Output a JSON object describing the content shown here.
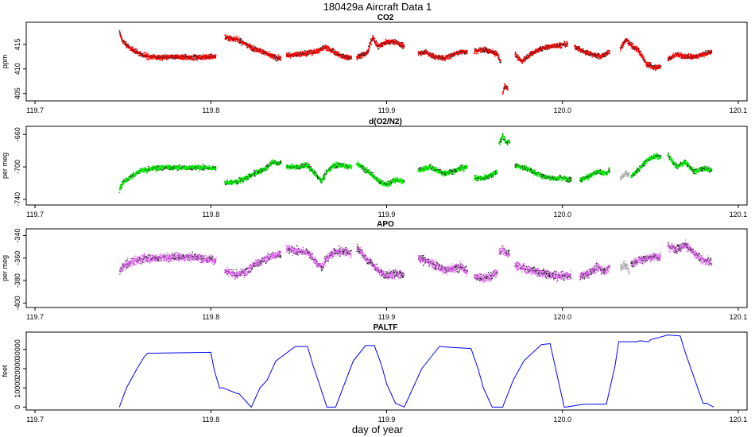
{
  "title": "180429a   Aircraft Data 1",
  "xlabel": "day of year",
  "colors": {
    "co2": "#ff0000",
    "o2n2": "#00ee00",
    "o2n2_flag": "#b0b0b0",
    "apo": "#dd66ee",
    "apo_flag": "#b0b0b0",
    "paltf": "#0000ff"
  },
  "chart_data": [
    {
      "type": "scatter",
      "title": "CO2",
      "ylabel": "ppm",
      "xlim": [
        119.695,
        120.105
      ],
      "ylim": [
        403.5,
        419.5
      ],
      "xticks": [
        "119.7",
        "119.8",
        "119.9",
        "120.0",
        "120.1"
      ],
      "yticks": [
        "405",
        "410",
        "415"
      ],
      "noise": 0.5,
      "segments": [
        {
          "x": [
            119.748,
            119.75,
            119.755,
            119.76,
            119.765,
            119.772,
            119.78,
            119.79,
            119.8,
            119.803
          ],
          "y": [
            417.5,
            415.5,
            414,
            413,
            412.5,
            412.3,
            412.5,
            412.3,
            412.5,
            412.6
          ]
        },
        {
          "x": [
            119.808,
            119.815,
            119.82,
            119.825,
            119.83,
            119.835,
            119.84
          ],
          "y": [
            416.5,
            416,
            415,
            414,
            413.5,
            412.5,
            412
          ]
        },
        {
          "x": [
            119.843,
            119.85,
            119.86,
            119.865,
            119.87,
            119.875,
            119.88
          ],
          "y": [
            412.8,
            413,
            413.5,
            414.5,
            413.5,
            412.5,
            412.3
          ]
        },
        {
          "x": [
            119.883,
            119.886,
            119.889,
            119.892,
            119.895,
            119.9,
            119.905,
            119.91
          ],
          "y": [
            412.3,
            412.8,
            413.2,
            416.5,
            414.5,
            415.5,
            415.5,
            414.5
          ]
        },
        {
          "x": [
            119.918,
            119.922,
            119.927,
            119.933,
            119.938,
            119.942,
            119.946
          ],
          "y": [
            413.2,
            413.5,
            412.5,
            412.2,
            413,
            413.5,
            413.5
          ]
        },
        {
          "x": [
            119.95,
            119.955,
            119.96,
            119.963,
            119.965
          ],
          "y": [
            413.5,
            414,
            413.5,
            413,
            411
          ]
        },
        {
          "x": [
            119.966,
            119.967,
            119.969
          ],
          "y": [
            405,
            406.5,
            406
          ]
        },
        {
          "x": [
            119.973,
            119.977,
            119.982,
            119.987,
            119.992,
            119.997,
            120.003
          ],
          "y": [
            413,
            411.5,
            413,
            414,
            414.5,
            414.8,
            415
          ]
        },
        {
          "x": [
            120.007,
            120.012,
            120.017,
            120.022,
            120.027
          ],
          "y": [
            414.5,
            413.5,
            413,
            412.5,
            413.5
          ]
        },
        {
          "x": [
            120.033,
            120.036,
            120.04,
            120.043,
            120.048,
            120.052,
            120.056
          ],
          "y": [
            414,
            416,
            414.5,
            414,
            411,
            410.3,
            410.5
          ]
        },
        {
          "x": [
            120.06,
            120.065,
            120.07,
            120.075,
            120.08,
            120.085
          ],
          "y": [
            412,
            413,
            412.5,
            412.5,
            413,
            413.5
          ]
        }
      ]
    },
    {
      "type": "scatter",
      "title": "d(O2/N2)",
      "ylabel": "per meg",
      "xlim": [
        119.695,
        120.105
      ],
      "ylim": [
        -747,
        -650
      ],
      "xticks": [
        "119.7",
        "119.8",
        "119.9",
        "120.0",
        "120.1"
      ],
      "yticks": [
        "-740",
        "-700",
        "-660"
      ],
      "noise": 3,
      "segments": [
        {
          "x": [
            119.748,
            119.75,
            119.755,
            119.76,
            119.765,
            119.77,
            119.78,
            119.79,
            119.8,
            119.803
          ],
          "y": [
            -730,
            -718,
            -712,
            -705,
            -703,
            -701,
            -701,
            -701,
            -701,
            -701
          ]
        },
        {
          "x": [
            119.808,
            119.815,
            119.82,
            119.825,
            119.83,
            119.835,
            119.84
          ],
          "y": [
            -720,
            -718,
            -714,
            -708,
            -704,
            -694,
            -696
          ]
        },
        {
          "x": [
            119.843,
            119.85,
            119.855,
            119.86,
            119.863,
            119.866,
            119.87,
            119.875,
            119.88
          ],
          "y": [
            -700,
            -700,
            -698,
            -710,
            -718,
            -706,
            -698,
            -698,
            -700
          ]
        },
        {
          "x": [
            119.883,
            119.888,
            119.892,
            119.896,
            119.9,
            119.905,
            119.91
          ],
          "y": [
            -696,
            -704,
            -710,
            -718,
            -722,
            -716,
            -718
          ]
        },
        {
          "x": [
            119.918,
            119.925,
            119.932,
            119.938,
            119.942,
            119.946
          ],
          "y": [
            -704,
            -700,
            -708,
            -706,
            -702,
            -700
          ]
        },
        {
          "x": [
            119.95,
            119.955,
            119.96,
            119.963
          ],
          "y": [
            -714,
            -714,
            -710,
            -706
          ]
        },
        {
          "x": [
            119.964,
            119.966,
            119.968,
            119.97
          ],
          "y": [
            -672,
            -662,
            -670,
            -668
          ]
        },
        {
          "x": [
            119.973,
            119.98,
            119.985,
            119.99,
            119.995,
            120.0,
            120.005
          ],
          "y": [
            -698,
            -702,
            -708,
            -712,
            -714,
            -714,
            -716
          ]
        },
        {
          "x": [
            120.01,
            120.015,
            120.02,
            120.025,
            120.027
          ],
          "y": [
            -716,
            -712,
            -706,
            -708,
            -704
          ]
        },
        {
          "x": [
            120.033,
            120.036,
            120.038
          ],
          "y": [
            -714,
            -708,
            -710
          ],
          "flag": true
        },
        {
          "x": [
            120.039,
            120.043,
            120.048,
            120.053,
            120.056
          ],
          "y": [
            -712,
            -704,
            -692,
            -686,
            -688
          ]
        },
        {
          "x": [
            120.06,
            120.065,
            120.07,
            120.075,
            120.08,
            120.085
          ],
          "y": [
            -686,
            -700,
            -694,
            -706,
            -702,
            -704
          ]
        }
      ]
    },
    {
      "type": "scatter",
      "title": "APO",
      "ylabel": "per meg",
      "xlim": [
        119.695,
        120.105
      ],
      "ylim": [
        -404,
        -334
      ],
      "xticks": [
        "119.7",
        "119.8",
        "119.9",
        "120.0",
        "120.1"
      ],
      "yticks": [
        "-400",
        "-380",
        "-360",
        "-340"
      ],
      "noise": 3.5,
      "segments": [
        {
          "x": [
            119.748,
            119.75,
            119.755,
            119.76,
            119.765,
            119.77,
            119.78,
            119.79,
            119.8,
            119.803
          ],
          "y": [
            -372,
            -368,
            -363,
            -361,
            -360,
            -360,
            -359,
            -359,
            -361,
            -363
          ]
        },
        {
          "x": [
            119.808,
            119.815,
            119.82,
            119.825,
            119.83,
            119.835,
            119.84
          ],
          "y": [
            -372,
            -375,
            -372,
            -366,
            -362,
            -358,
            -356
          ]
        },
        {
          "x": [
            119.843,
            119.85,
            119.855,
            119.86,
            119.863,
            119.866,
            119.87,
            119.875,
            119.88
          ],
          "y": [
            -352,
            -354,
            -354,
            -364,
            -368,
            -360,
            -355,
            -354,
            -356
          ]
        },
        {
          "x": [
            119.883,
            119.888,
            119.892,
            119.896,
            119.9,
            119.905,
            119.91
          ],
          "y": [
            -350,
            -360,
            -366,
            -372,
            -376,
            -374,
            -375
          ]
        },
        {
          "x": [
            119.918,
            119.925,
            119.932,
            119.938,
            119.942,
            119.946
          ],
          "y": [
            -360,
            -364,
            -370,
            -370,
            -368,
            -372
          ]
        },
        {
          "x": [
            119.95,
            119.955,
            119.96,
            119.963
          ],
          "y": [
            -376,
            -378,
            -376,
            -372
          ]
        },
        {
          "x": [
            119.964,
            119.966,
            119.968,
            119.97
          ],
          "y": [
            -356,
            -352,
            -356,
            -356
          ]
        },
        {
          "x": [
            119.973,
            119.98,
            119.985,
            119.99,
            119.995,
            120.0,
            120.005
          ],
          "y": [
            -366,
            -370,
            -372,
            -374,
            -376,
            -376,
            -376
          ]
        },
        {
          "x": [
            120.01,
            120.015,
            120.02,
            120.025,
            120.027
          ],
          "y": [
            -376,
            -374,
            -368,
            -372,
            -366
          ]
        },
        {
          "x": [
            120.033,
            120.036,
            120.038
          ],
          "y": [
            -368,
            -366,
            -372
          ],
          "flag": true
        },
        {
          "x": [
            120.039,
            120.043,
            120.048,
            120.053,
            120.056
          ],
          "y": [
            -366,
            -362,
            -360,
            -358,
            -360
          ]
        },
        {
          "x": [
            120.06,
            120.065,
            120.07,
            120.075,
            120.08,
            120.085
          ],
          "y": [
            -350,
            -352,
            -348,
            -356,
            -362,
            -364
          ]
        }
      ]
    },
    {
      "type": "line",
      "title": "PALTF",
      "ylabel": "feet",
      "xlim": [
        119.695,
        120.105
      ],
      "ylim": [
        -1500,
        39000
      ],
      "xticks": [
        "119.7",
        "119.8",
        "119.9",
        "120.0",
        "120.1"
      ],
      "yticks": [
        "0",
        "10000",
        "20000",
        "30000"
      ],
      "x": [
        119.748,
        119.752,
        119.758,
        119.762,
        119.764,
        119.8,
        119.802,
        119.805,
        119.807,
        119.815,
        119.816,
        119.819,
        119.82,
        119.823,
        119.828,
        119.832,
        119.837,
        119.848,
        119.855,
        119.858,
        119.861,
        119.866,
        119.871,
        119.876,
        119.881,
        119.888,
        119.893,
        119.897,
        119.9,
        119.905,
        119.91,
        119.92,
        119.93,
        119.938,
        119.948,
        119.952,
        119.955,
        119.96,
        119.966,
        119.972,
        119.978,
        119.988,
        119.993,
        120.001,
        120.002,
        120.012,
        120.025,
        120.03,
        120.032,
        120.042,
        120.044,
        120.049,
        120.05,
        120.058,
        120.06,
        120.067,
        120.07,
        120.08,
        120.082,
        120.086
      ],
      "y": [
        0,
        10000,
        20000,
        26000,
        28000,
        28500,
        19000,
        10000,
        10000,
        7000,
        7000,
        4000,
        3000,
        0,
        10000,
        14000,
        24000,
        31500,
        31500,
        22000,
        14000,
        0,
        0,
        12000,
        24000,
        32000,
        32000,
        22000,
        12000,
        2000,
        0,
        20000,
        31500,
        31000,
        30500,
        20000,
        10000,
        0,
        0,
        14000,
        24000,
        32500,
        33000,
        0,
        0,
        1500,
        1500,
        22000,
        34000,
        34000,
        34500,
        34000,
        35000,
        37000,
        37500,
        37000,
        28000,
        2000,
        2000,
        0
      ]
    }
  ]
}
